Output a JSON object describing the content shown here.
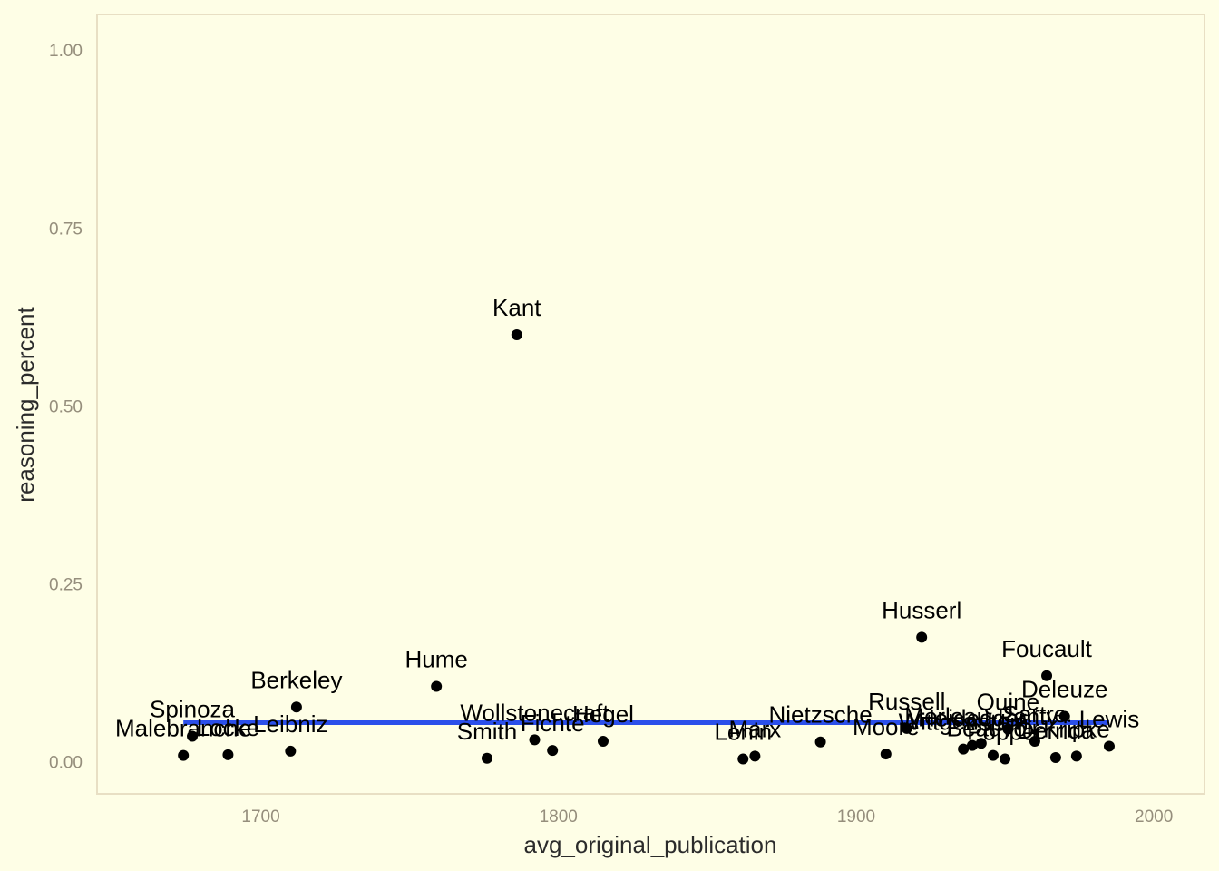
{
  "chart_data": {
    "type": "scatter",
    "title": "",
    "xlabel": "avg_original_publication",
    "ylabel": "reasoning_percent",
    "xlim": [
      1645,
      2017
    ],
    "ylim": [
      -0.045,
      1.05
    ],
    "x_ticks": [
      1700,
      1800,
      1900,
      2000
    ],
    "y_ticks": [
      0.0,
      0.25,
      0.5,
      0.75,
      1.0
    ],
    "x_tick_labels": [
      "1700",
      "1800",
      "1900",
      "2000"
    ],
    "y_tick_labels": [
      "0.00",
      "0.25",
      "0.50",
      "0.75",
      "1.00"
    ],
    "grid": false,
    "legend": "none",
    "colors": {
      "background": "#fefee6",
      "border": "#e8dfc4",
      "point": "#000000",
      "trend": "#2b4fea",
      "tick": "#958e7c",
      "axis_title": "#2b2b2b"
    },
    "trend_line": {
      "x": [
        1674,
        1985
      ],
      "y": [
        0.055,
        0.055
      ]
    },
    "points": [
      {
        "label": "Malebranche",
        "x": 1674,
        "y": 0.009
      },
      {
        "label": "Spinoza",
        "x": 1677,
        "y": 0.036
      },
      {
        "label": "Locke",
        "x": 1689,
        "y": 0.01
      },
      {
        "label": "Leibniz",
        "x": 1710,
        "y": 0.015
      },
      {
        "label": "Berkeley",
        "x": 1712,
        "y": 0.077
      },
      {
        "label": "Hume",
        "x": 1759,
        "y": 0.106
      },
      {
        "label": "Smith",
        "x": 1776,
        "y": 0.005
      },
      {
        "label": "Kant",
        "x": 1786,
        "y": 0.6
      },
      {
        "label": "Wollstonecraft",
        "x": 1792,
        "y": 0.031
      },
      {
        "label": "Fichte",
        "x": 1798,
        "y": 0.016
      },
      {
        "label": "Hegel",
        "x": 1815,
        "y": 0.029
      },
      {
        "label": "Lenin",
        "x": 1862,
        "y": 0.004
      },
      {
        "label": "Marx",
        "x": 1866,
        "y": 0.008
      },
      {
        "label": "Nietzsche",
        "x": 1888,
        "y": 0.028
      },
      {
        "label": "Moore",
        "x": 1910,
        "y": 0.011
      },
      {
        "label": "Russell",
        "x": 1917,
        "y": 0.047
      },
      {
        "label": "Husserl",
        "x": 1922,
        "y": 0.175
      },
      {
        "label": "Wittgenstein",
        "x": 1936,
        "y": 0.018
      },
      {
        "label": "Heidegger",
        "x": 1939,
        "y": 0.023
      },
      {
        "label": "Merleau-Ponty",
        "x": 1942,
        "y": 0.026
      },
      {
        "label": "Beauvoir",
        "x": 1946,
        "y": 0.009
      },
      {
        "label": "Popper",
        "x": 1950,
        "y": 0.004
      },
      {
        "label": "Quine",
        "x": 1951,
        "y": 0.046
      },
      {
        "label": "Sartre",
        "x": 1960,
        "y": 0.029
      },
      {
        "label": "Foucault",
        "x": 1964,
        "y": 0.121
      },
      {
        "label": "Derrida",
        "x": 1967,
        "y": 0.006
      },
      {
        "label": "Deleuze",
        "x": 1970,
        "y": 0.064
      },
      {
        "label": "Kripke",
        "x": 1974,
        "y": 0.008
      },
      {
        "label": "Lewis",
        "x": 1985,
        "y": 0.022
      }
    ]
  }
}
